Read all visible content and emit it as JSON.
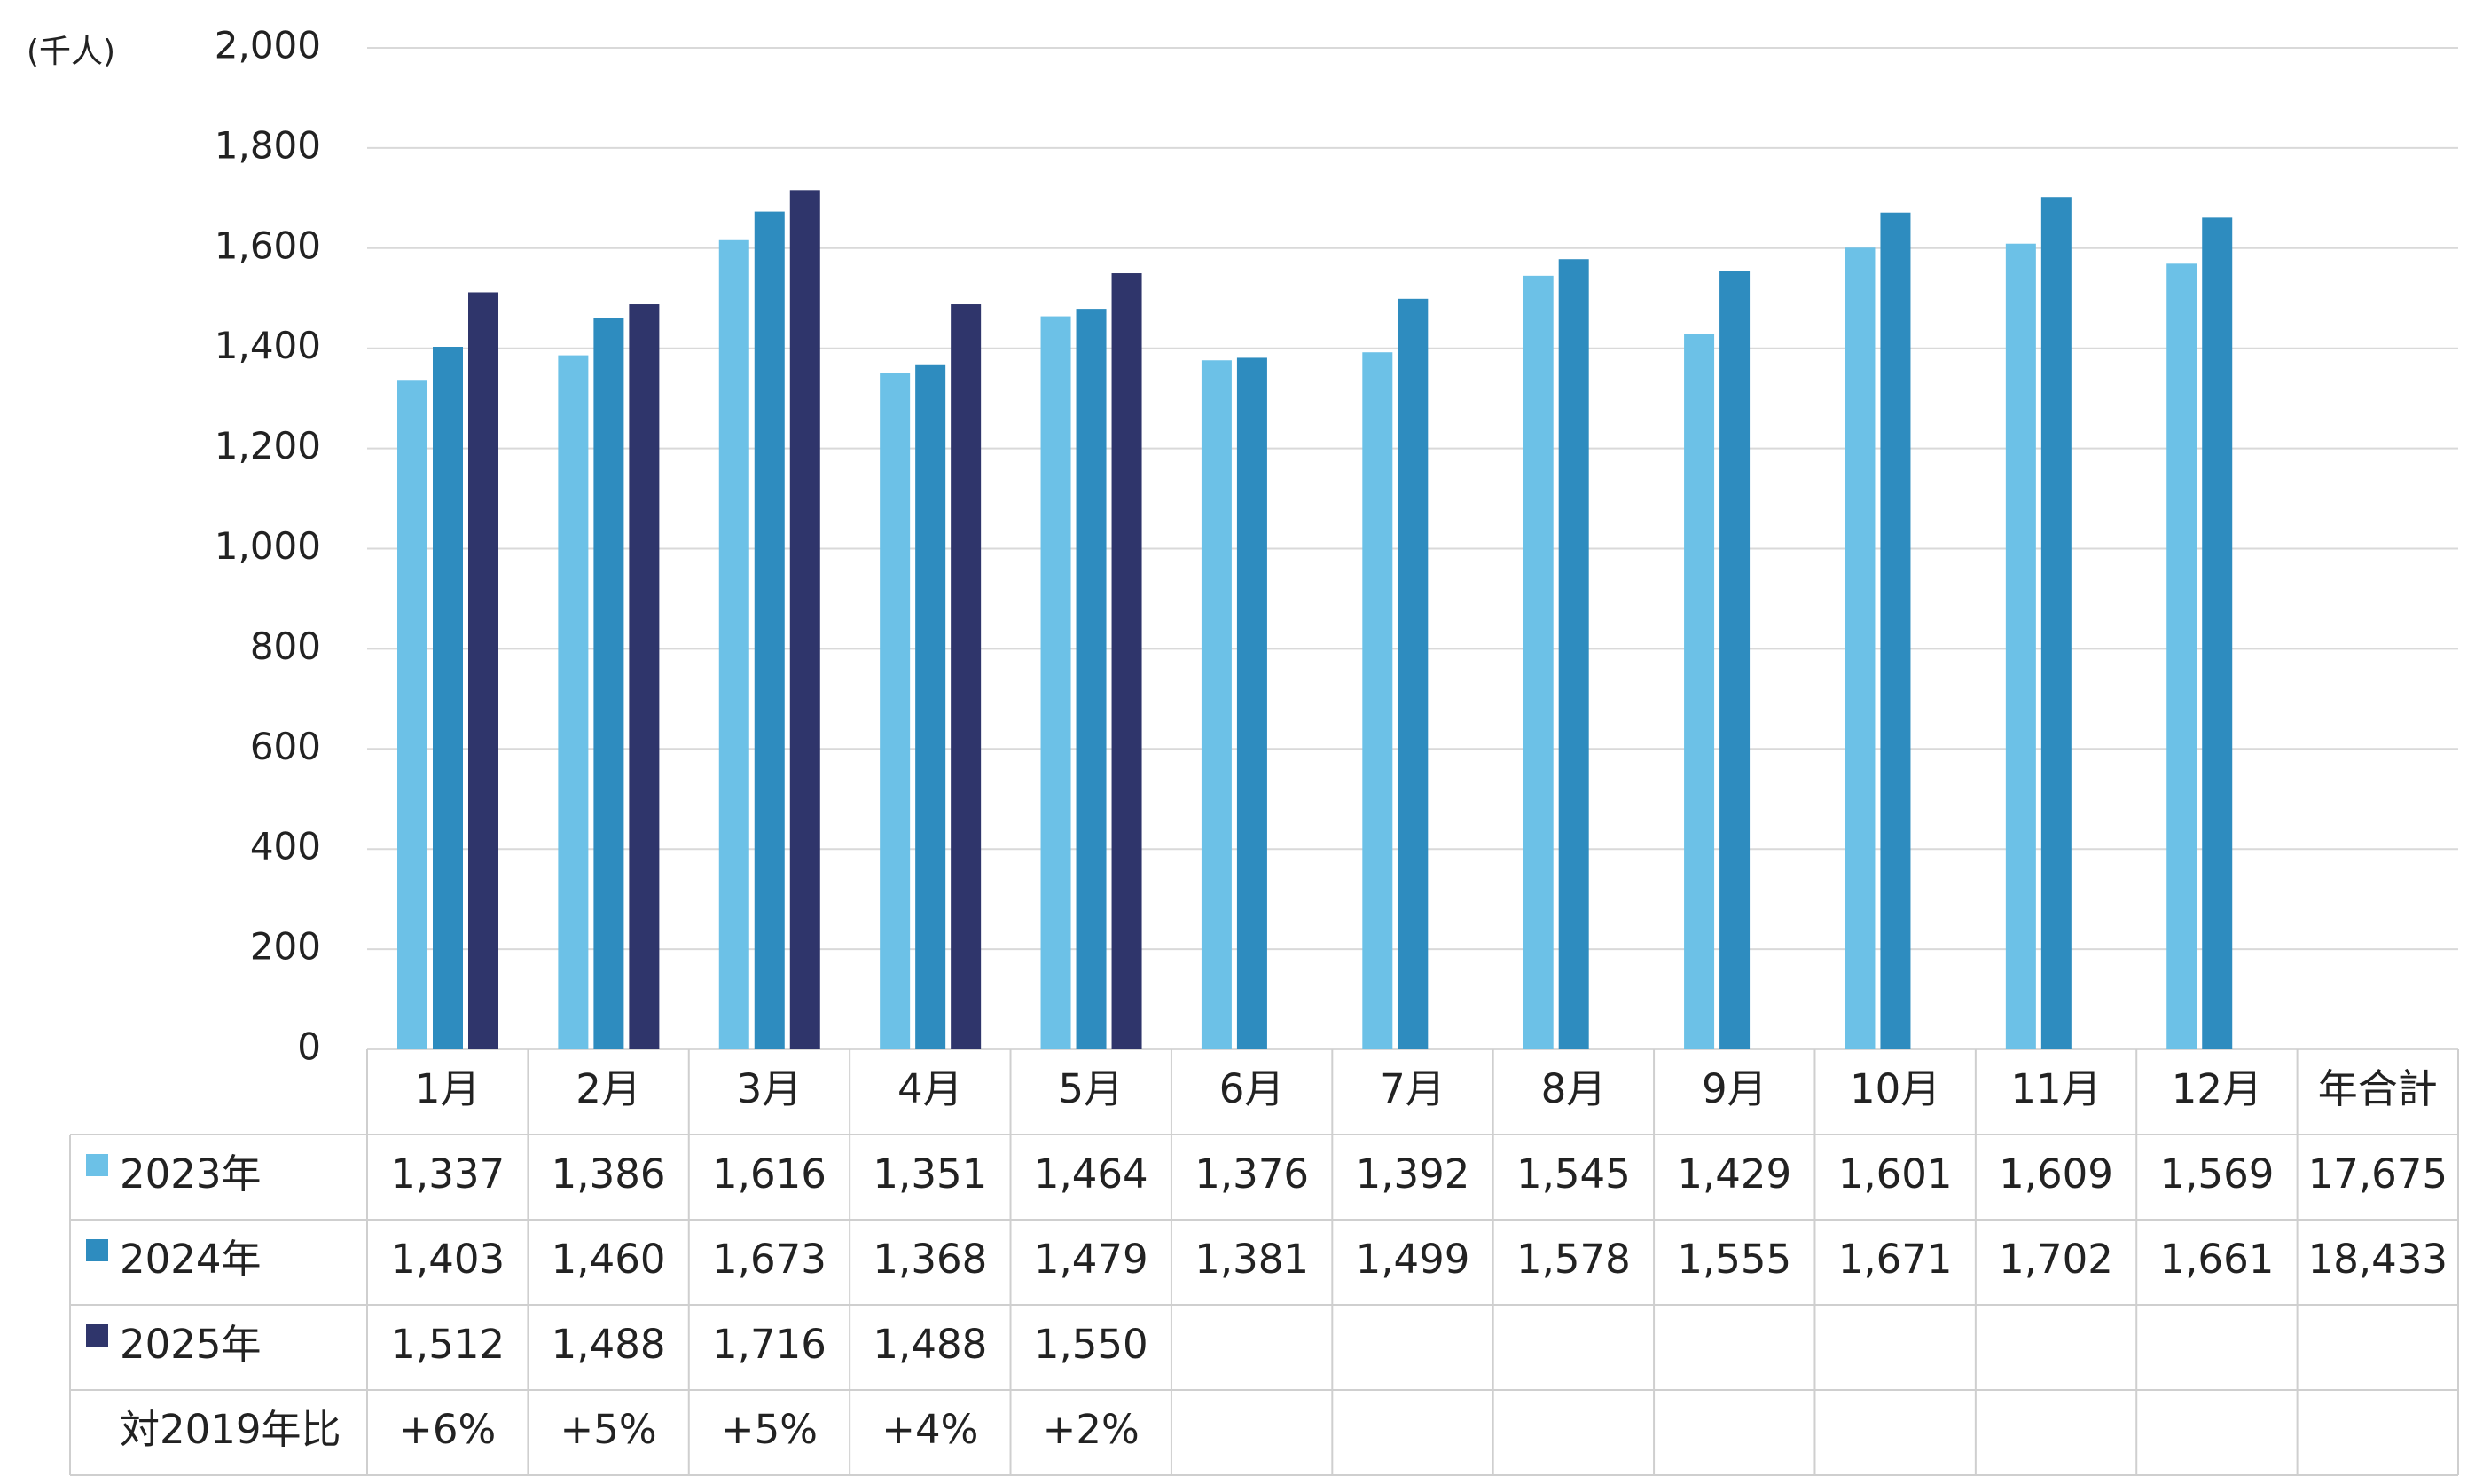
{
  "chart_data": {
    "type": "bar",
    "y_unit": "(千人)",
    "categories": [
      "1月",
      "2月",
      "3月",
      "4月",
      "5月",
      "6月",
      "7月",
      "8月",
      "9月",
      "10月",
      "11月",
      "12月"
    ],
    "total_header": "年合計",
    "series": [
      {
        "name": "2023年",
        "color": "#6cc1e7",
        "values": [
          1337,
          1386,
          1616,
          1351,
          1464,
          1376,
          1392,
          1545,
          1429,
          1601,
          1609,
          1569
        ],
        "value_labels": [
          "1,337",
          "1,386",
          "1,616",
          "1,351",
          "1,464",
          "1,376",
          "1,392",
          "1,545",
          "1,429",
          "1,601",
          "1,609",
          "1,569"
        ],
        "total": 17675,
        "total_label": "17,675"
      },
      {
        "name": "2024年",
        "color": "#2e8cbf",
        "values": [
          1403,
          1460,
          1673,
          1368,
          1479,
          1381,
          1499,
          1578,
          1555,
          1671,
          1702,
          1661
        ],
        "value_labels": [
          "1,403",
          "1,460",
          "1,673",
          "1,368",
          "1,479",
          "1,381",
          "1,499",
          "1,578",
          "1,555",
          "1,671",
          "1,702",
          "1,661"
        ],
        "total": 18433,
        "total_label": "18,433"
      },
      {
        "name": "2025年",
        "color": "#2f356b",
        "values": [
          1512,
          1488,
          1716,
          1488,
          1550,
          null,
          null,
          null,
          null,
          null,
          null,
          null
        ],
        "value_labels": [
          "1,512",
          "1,488",
          "1,716",
          "1,488",
          "1,550",
          null,
          null,
          null,
          null,
          null,
          null,
          null
        ]
      }
    ],
    "ratio_row": {
      "name": "対2019年比",
      "values": [
        6,
        5,
        5,
        4,
        2
      ],
      "value_labels": [
        "+6%",
        "+5%",
        "+5%",
        "+4%",
        "+2%"
      ]
    },
    "ylim": [
      0,
      2000
    ],
    "yticks": [
      0,
      200,
      400,
      600,
      800,
      {
        "value": 1000,
        "label": "1,000"
      },
      {
        "value": 1200,
        "label": "1,200"
      },
      {
        "value": 1400,
        "label": "1,400"
      },
      {
        "value": 1600,
        "label": "1,600"
      },
      {
        "value": 1800,
        "label": "1,800"
      },
      {
        "value": 2000,
        "label": "2,000"
      }
    ],
    "grid": true
  }
}
